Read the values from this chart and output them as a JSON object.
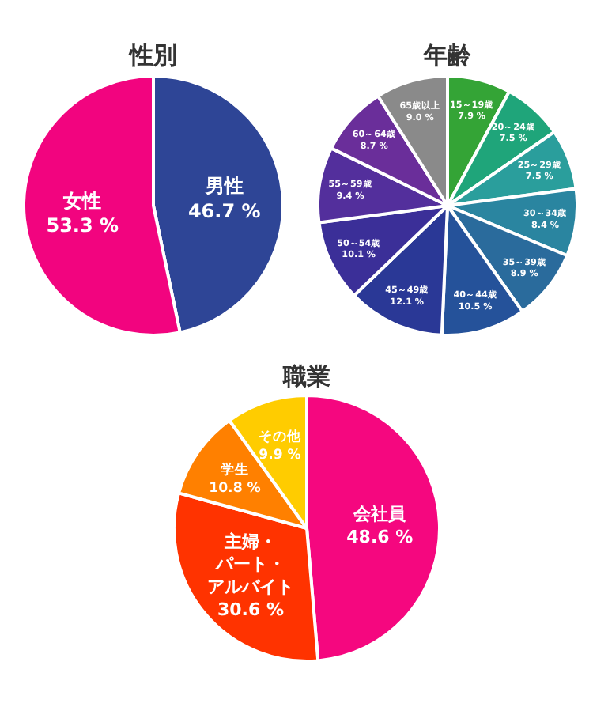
{
  "chart_data": [
    {
      "type": "pie",
      "title": "性別",
      "categories": [
        "男性",
        "女性"
      ],
      "values": [
        46.7,
        53.3
      ],
      "value_labels": [
        "46.7 %",
        "53.3 %"
      ],
      "colors": [
        "#2e4596",
        "#f2047f"
      ]
    },
    {
      "type": "pie",
      "title": "年齢",
      "categories": [
        "15～19歳",
        "20～24歳",
        "25～29歳",
        "30～34歳",
        "35～39歳",
        "40～44歳",
        "45～49歳",
        "50～54歳",
        "55～59歳",
        "60～64歳",
        "65歳以上"
      ],
      "values": [
        7.9,
        7.5,
        7.5,
        8.4,
        8.9,
        10.5,
        12.1,
        10.1,
        9.4,
        8.7,
        9.0
      ],
      "value_labels": [
        "7.9 %",
        "7.5 %",
        "7.5 %",
        "8.4 %",
        "8.9 %",
        "10.5 %",
        "12.1 %",
        "10.1 %",
        "9.4 %",
        "8.7 %",
        "9.0 %"
      ],
      "colors": [
        "#34a436",
        "#1fa57a",
        "#2a9e9c",
        "#2a85a0",
        "#2a6b9c",
        "#25529a",
        "#2a3896",
        "#3b2f98",
        "#532f9c",
        "#6a2e9a",
        "#8a8a8a"
      ]
    },
    {
      "type": "pie",
      "title": "職業",
      "categories": [
        "会社員",
        "主婦・パート・アルバイト",
        "学生",
        "その他"
      ],
      "values": [
        48.6,
        30.6,
        10.8,
        9.9
      ],
      "value_labels": [
        "48.6 %",
        "30.6 %",
        "10.8 %",
        "9.9 %"
      ],
      "colors": [
        "#f5077f",
        "#ff3300",
        "#ff8000",
        "#ffcc00"
      ]
    }
  ]
}
